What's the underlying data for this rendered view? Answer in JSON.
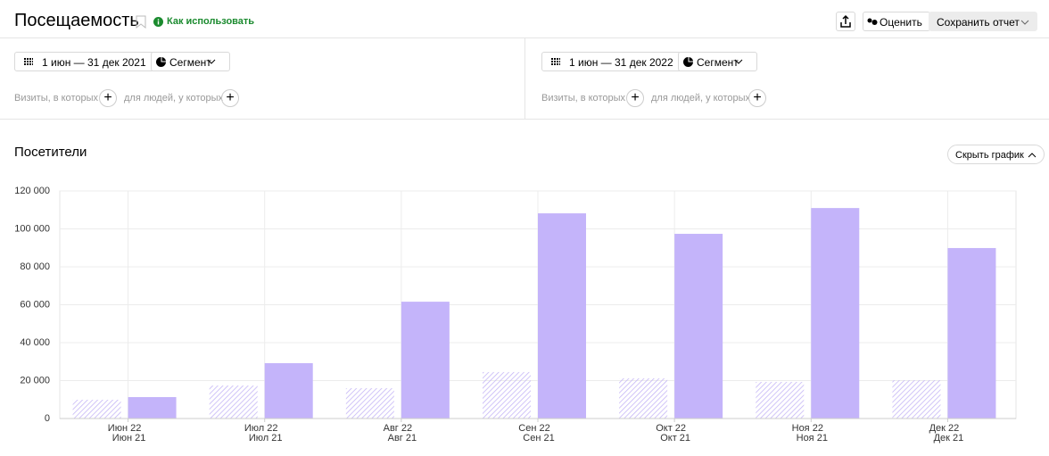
{
  "header": {
    "title": "Посещаемость",
    "help_link": "Как использовать",
    "rate_button": "Оценить",
    "save_button": "Сохранить отчет"
  },
  "segments": [
    {
      "date_range": "1 июн — 31 дек 2021",
      "segment_button": "Сегмент",
      "visits_filter": "Визиты, в которых",
      "people_filter": "для людей, у которых"
    },
    {
      "date_range": "1 июн — 31 дек 2022",
      "segment_button": "Сегмент",
      "visits_filter": "Визиты, в которых",
      "people_filter": "для людей, у которых"
    }
  ],
  "section": {
    "title": "Посетители",
    "toggle_button": "Скрыть график"
  },
  "chart_data": {
    "type": "bar",
    "categories": [
      "Июн 22",
      "Июл 22",
      "Авг 22",
      "Сен 22",
      "Окт 22",
      "Ноя 22",
      "Дек 22"
    ],
    "categories_secondary": [
      "Июн 21",
      "Июл 21",
      "Авг 21",
      "Сен 21",
      "Окт 21",
      "Ноя 21",
      "Дек 21"
    ],
    "series": [
      {
        "color": "#c2b2f5",
        "pattern": "hatched",
        "values": [
          9900,
          17400,
          16000,
          24500,
          21200,
          19300,
          20200
        ]
      },
      {
        "color": "#c4b4fa",
        "values": [
          11300,
          29200,
          61600,
          108200,
          97400,
          111000,
          89900
        ]
      }
    ],
    "ylim": [
      0,
      120000
    ],
    "yticks": [
      0,
      {
        "value": 20000,
        "label": "20 000"
      },
      {
        "value": 40000,
        "label": "40 000"
      },
      {
        "value": 60000,
        "label": "60 000"
      },
      {
        "value": 80000,
        "label": "80 000"
      },
      {
        "value": 100000,
        "label": "100 000"
      },
      {
        "value": 120000,
        "label": "120 000"
      }
    ],
    "grid": true
  }
}
